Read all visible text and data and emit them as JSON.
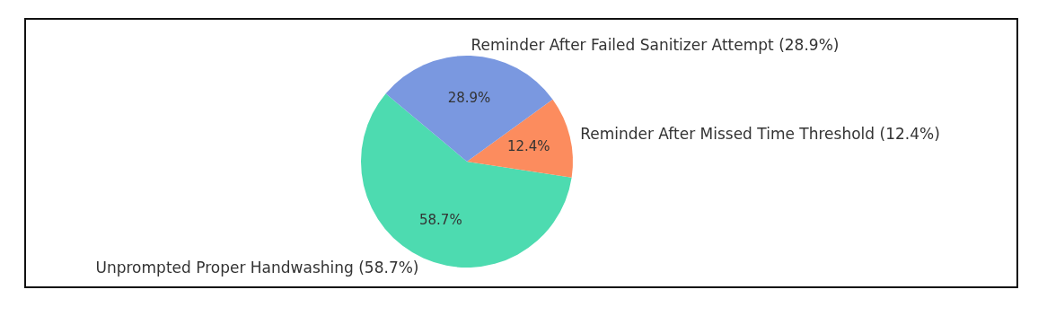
{
  "chart_data": {
    "type": "pie",
    "categories": [
      "Unprompted Proper Handwashing (58.7%)",
      "Reminder After Missed Time Threshold (12.4%)",
      "Reminder After Failed Sanitizer Attempt (28.9%)"
    ],
    "values": [
      58.7,
      12.4,
      28.9
    ],
    "colors": [
      "#4ddbb0",
      "#fc8c5e",
      "#7a98e0"
    ],
    "value_labels": [
      "58.7%",
      "12.4%",
      "28.9%"
    ],
    "legend": false
  }
}
